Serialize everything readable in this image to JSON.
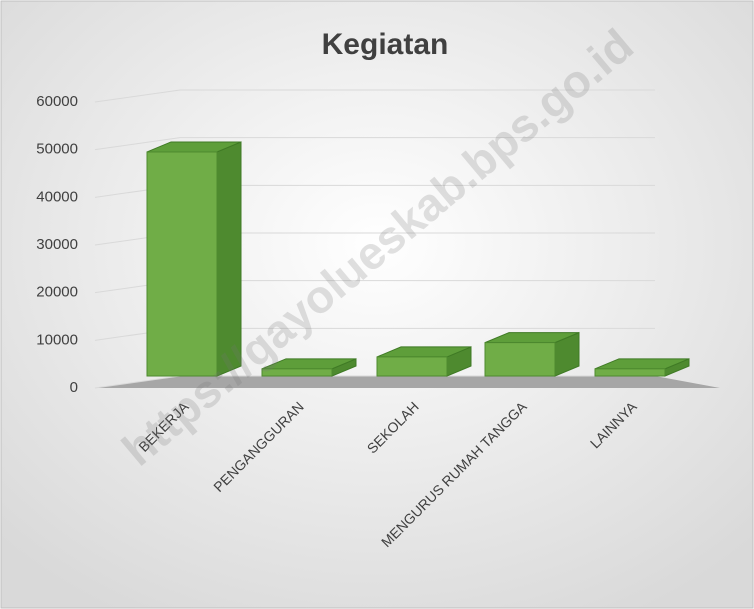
{
  "chart_data": {
    "type": "bar3d",
    "title": "Kegiatan",
    "categories": [
      "BEKERJA",
      "PENGANGGURAN",
      "SEKOLAH",
      "MENGURUS RUMAH TANGGA",
      "LAINNYA"
    ],
    "values": [
      47000,
      1500,
      4000,
      7000,
      1500
    ],
    "color": "#70ad47",
    "ylim": [
      0,
      60000
    ],
    "yticks": [
      0,
      10000,
      20000,
      30000,
      40000,
      50000,
      60000
    ],
    "grid": true,
    "watermark": "https://gayolueskab.bps.go.id"
  }
}
